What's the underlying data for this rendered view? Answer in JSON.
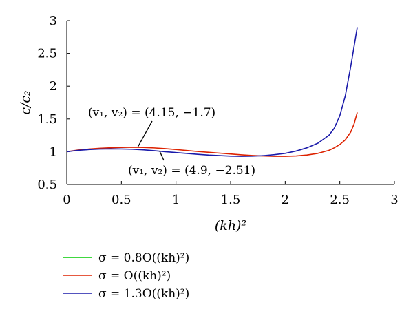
{
  "chart_data": {
    "type": "line",
    "xlabel": "(kh)²",
    "ylabel": "c/c₂",
    "xlim": [
      0,
      3
    ],
    "ylim": [
      0.5,
      3
    ],
    "xticks": [
      "0",
      "0.5",
      "1",
      "1.5",
      "2",
      "2.5",
      "3"
    ],
    "yticks": [
      "0.5",
      "1",
      "1.5",
      "2",
      "2.5",
      "3"
    ],
    "grid": false,
    "legend_position": "bottom-left",
    "series": [
      {
        "name": "σ = 0.8O((kh)²)",
        "color": "#00cc00",
        "x": [],
        "y": []
      },
      {
        "name": "σ = O((kh)²)",
        "color": "#dd2200",
        "x": [
          0,
          0.1,
          0.2,
          0.3,
          0.4,
          0.5,
          0.6,
          0.7,
          0.8,
          0.9,
          1.0,
          1.1,
          1.2,
          1.3,
          1.4,
          1.5,
          1.6,
          1.7,
          1.8,
          1.9,
          2.0,
          2.1,
          2.2,
          2.3,
          2.4,
          2.45,
          2.5,
          2.55,
          2.6,
          2.63,
          2.66
        ],
        "y": [
          1.0,
          1.025,
          1.04,
          1.052,
          1.06,
          1.065,
          1.068,
          1.065,
          1.058,
          1.047,
          1.033,
          1.018,
          1.003,
          0.99,
          0.978,
          0.965,
          0.952,
          0.942,
          0.935,
          0.93,
          0.93,
          0.935,
          0.95,
          0.975,
          1.02,
          1.06,
          1.11,
          1.18,
          1.3,
          1.42,
          1.6
        ]
      },
      {
        "name": "σ = 1.3O((kh)²)",
        "color": "#1a1aaa",
        "x": [
          0,
          0.1,
          0.2,
          0.3,
          0.4,
          0.5,
          0.6,
          0.7,
          0.8,
          0.9,
          1.0,
          1.1,
          1.2,
          1.3,
          1.4,
          1.5,
          1.6,
          1.7,
          1.8,
          1.9,
          2.0,
          2.1,
          2.2,
          2.3,
          2.4,
          2.45,
          2.5,
          2.55,
          2.6,
          2.63,
          2.66
        ],
        "y": [
          1.0,
          1.02,
          1.032,
          1.04,
          1.043,
          1.042,
          1.037,
          1.028,
          1.015,
          1.0,
          0.987,
          0.973,
          0.96,
          0.948,
          0.94,
          0.933,
          0.93,
          0.932,
          0.94,
          0.955,
          0.975,
          1.01,
          1.06,
          1.13,
          1.25,
          1.36,
          1.55,
          1.85,
          2.3,
          2.6,
          2.9
        ]
      }
    ],
    "annotations": [
      {
        "text": "(v₁, v₂) = (4.15, −1.7)",
        "points_to": [
          0.65,
          1.07
        ],
        "series": "σ = O((kh)²)"
      },
      {
        "text": "(v₁, v₂) = (4.9, −2.51)",
        "points_to": [
          0.85,
          1.01
        ],
        "series": "σ = 1.3O((kh)²)"
      }
    ]
  }
}
